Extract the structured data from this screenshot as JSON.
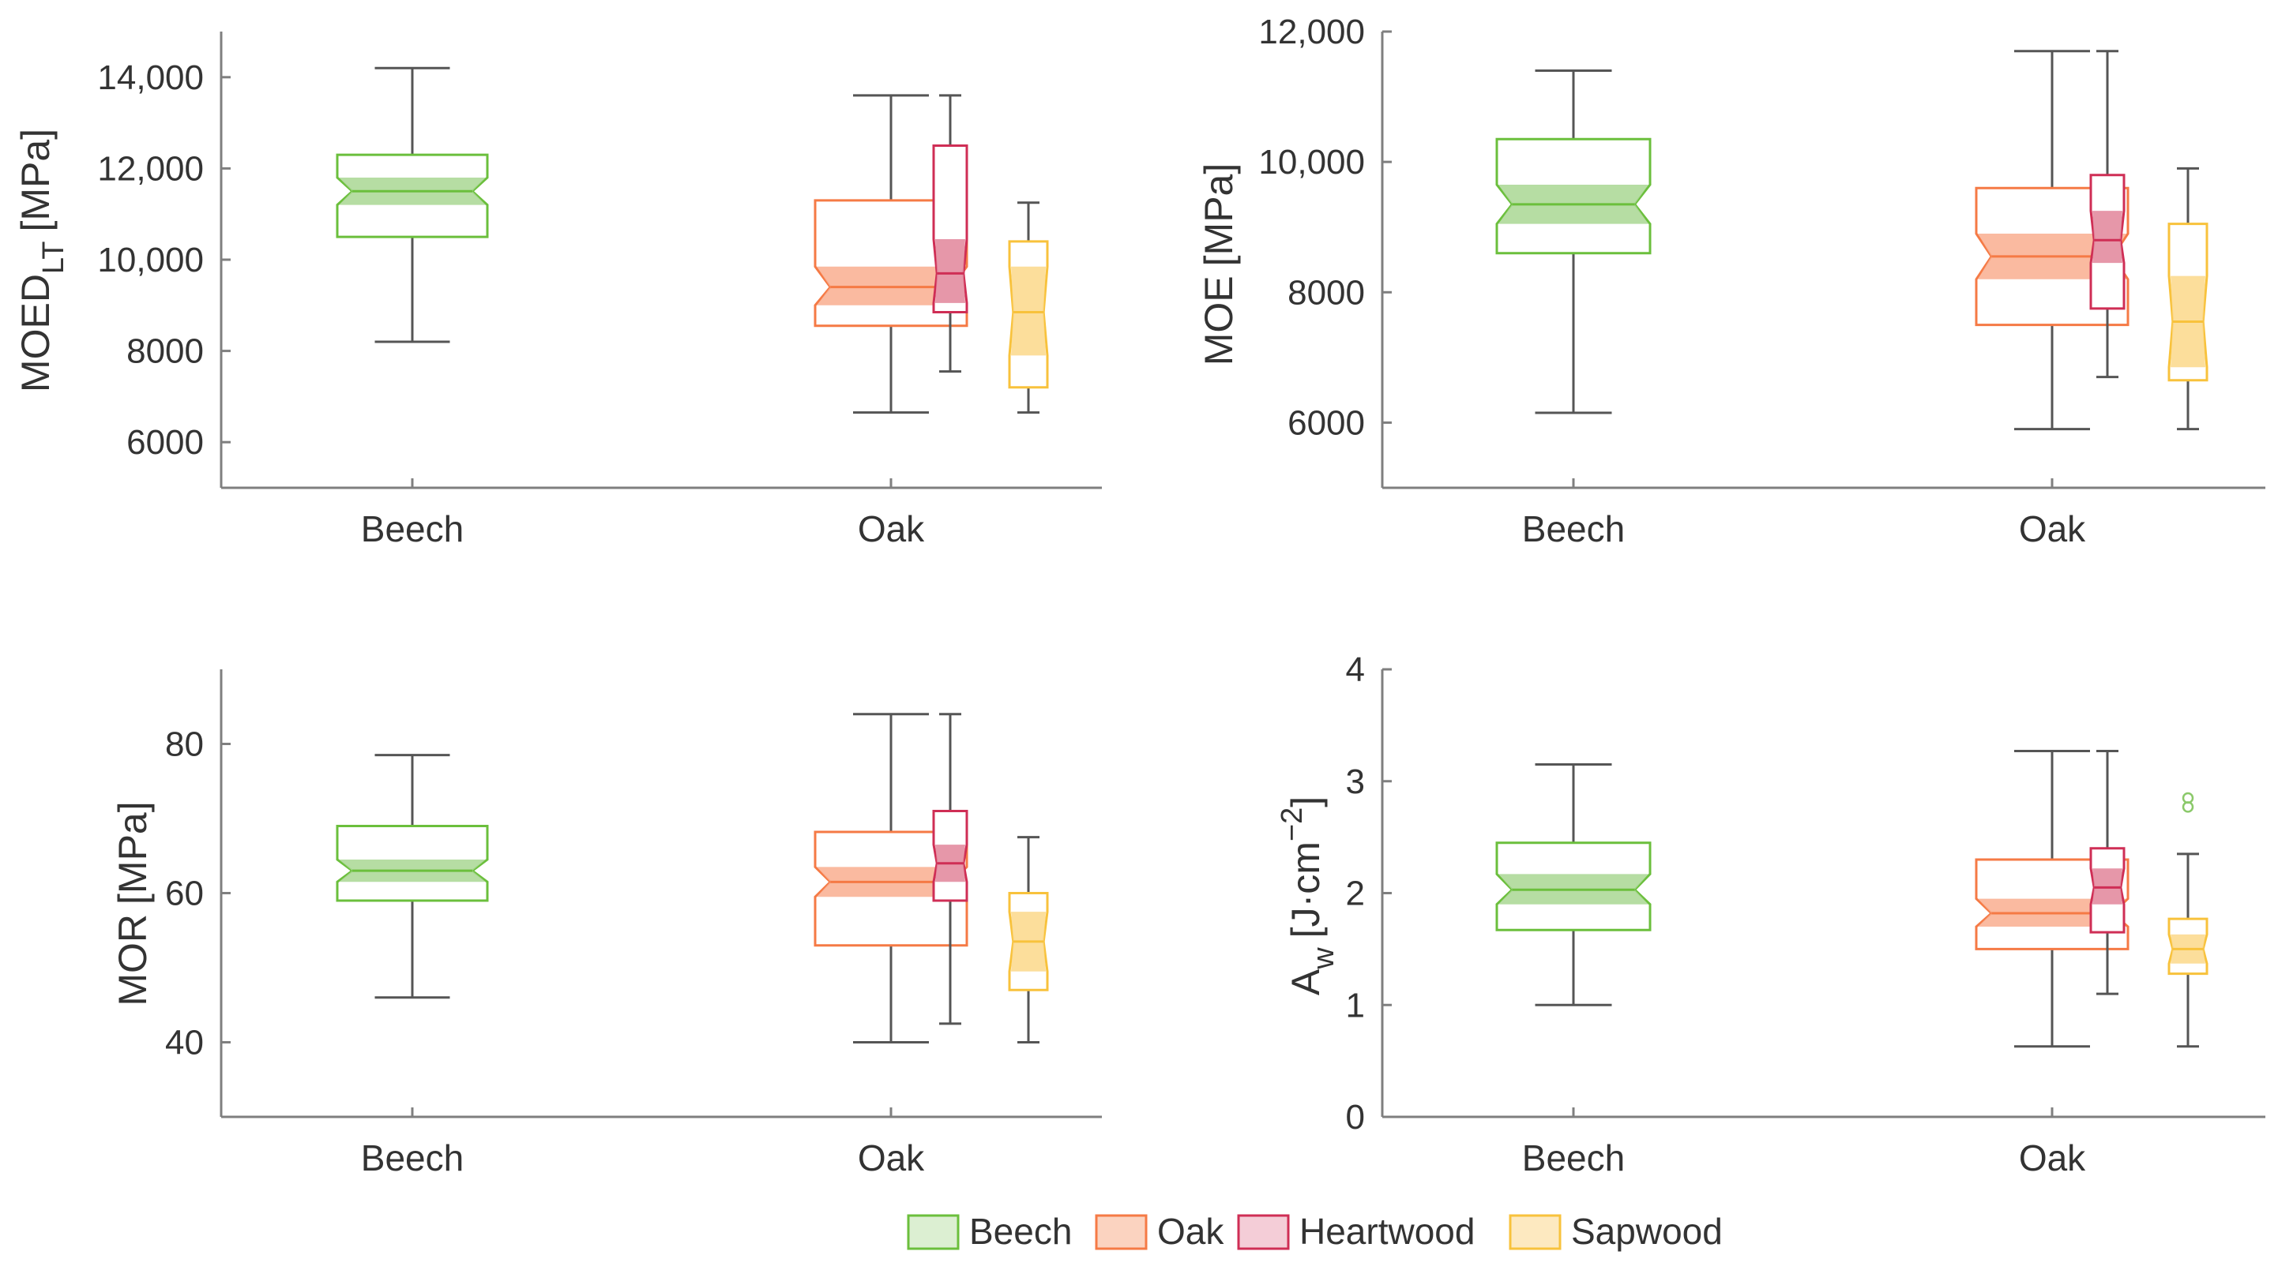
{
  "chart_data": [
    {
      "type": "box",
      "id": "moed",
      "ylabel": "MOED",
      "ylabel_sub": "LT",
      "ylabel_unit": "[MPa]",
      "ylim": [
        5000,
        15000
      ],
      "yticks": [
        6000,
        8000,
        10000,
        12000,
        14000
      ],
      "ytick_labels": [
        "6000",
        "8000",
        "10,000",
        "12,000",
        "14,000"
      ],
      "categories": [
        "Beech",
        "Oak"
      ],
      "boxes": [
        {
          "group": "Beech",
          "position": "Beech",
          "wlo": 8200,
          "q1": 10500,
          "med": 11500,
          "q3": 12300,
          "whi": 14200,
          "nlo": 11200,
          "nhi": 11800,
          "outliers": []
        },
        {
          "group": "Oak",
          "position": "Oak",
          "wlo": 6650,
          "q1": 8550,
          "med": 9400,
          "q3": 11300,
          "whi": 13600,
          "nlo": 9000,
          "nhi": 9850,
          "outliers": []
        },
        {
          "group": "Heartwood",
          "position": "Oak-heart",
          "wlo": 7550,
          "q1": 8850,
          "med": 9700,
          "q3": 12500,
          "whi": 13600,
          "nlo": 9050,
          "nhi": 10450,
          "outliers": []
        },
        {
          "group": "Sapwood",
          "position": "Oak-sap",
          "wlo": 6650,
          "q1": 7200,
          "med": 8850,
          "q3": 10400,
          "whi": 11250,
          "nlo": 7900,
          "nhi": 9850,
          "outliers": []
        }
      ]
    },
    {
      "type": "box",
      "id": "moe",
      "ylabel": "MOE",
      "ylabel_sub": "",
      "ylabel_unit": "[MPa]",
      "ylim": [
        5000,
        12000
      ],
      "yticks": [
        6000,
        8000,
        10000,
        12000
      ],
      "ytick_labels": [
        "6000",
        "8000",
        "10,000",
        "12,000"
      ],
      "categories": [
        "Beech",
        "Oak"
      ],
      "boxes": [
        {
          "group": "Beech",
          "position": "Beech",
          "wlo": 6150,
          "q1": 8600,
          "med": 9350,
          "q3": 10350,
          "whi": 11400,
          "nlo": 9050,
          "nhi": 9650,
          "outliers": []
        },
        {
          "group": "Oak",
          "position": "Oak",
          "wlo": 5900,
          "q1": 7500,
          "med": 8550,
          "q3": 9600,
          "whi": 11700,
          "nlo": 8200,
          "nhi": 8900,
          "outliers": []
        },
        {
          "group": "Heartwood",
          "position": "Oak-heart",
          "wlo": 6700,
          "q1": 7750,
          "med": 8800,
          "q3": 9800,
          "whi": 11700,
          "nlo": 8450,
          "nhi": 9250,
          "outliers": []
        },
        {
          "group": "Sapwood",
          "position": "Oak-sap",
          "wlo": 5900,
          "q1": 6650,
          "med": 7550,
          "q3": 9050,
          "whi": 9900,
          "nlo": 6850,
          "nhi": 8250,
          "outliers": []
        }
      ]
    },
    {
      "type": "box",
      "id": "mor",
      "ylabel": "MOR",
      "ylabel_sub": "",
      "ylabel_unit": "[MPa]",
      "ylim": [
        30,
        90
      ],
      "yticks": [
        40,
        60,
        80
      ],
      "ytick_labels": [
        "40",
        "60",
        "80"
      ],
      "categories": [
        "Beech",
        "Oak"
      ],
      "boxes": [
        {
          "group": "Beech",
          "position": "Beech",
          "wlo": 46,
          "q1": 59,
          "med": 63,
          "q3": 69,
          "whi": 78.5,
          "nlo": 61.5,
          "nhi": 64.5,
          "outliers": []
        },
        {
          "group": "Oak",
          "position": "Oak",
          "wlo": 40,
          "q1": 53,
          "med": 61.5,
          "q3": 68.2,
          "whi": 84,
          "nlo": 59.5,
          "nhi": 63.5,
          "outliers": []
        },
        {
          "group": "Heartwood",
          "position": "Oak-heart",
          "wlo": 42.5,
          "q1": 59,
          "med": 64,
          "q3": 71,
          "whi": 84,
          "nlo": 61.5,
          "nhi": 66.5,
          "outliers": []
        },
        {
          "group": "Sapwood",
          "position": "Oak-sap",
          "wlo": 40,
          "q1": 47,
          "med": 53.5,
          "q3": 60,
          "whi": 67.5,
          "nlo": 49.5,
          "nhi": 57.5,
          "outliers": []
        }
      ]
    },
    {
      "type": "box",
      "id": "aw",
      "ylabel": "A",
      "ylabel_sub": "w",
      "ylabel_unit": "[J·cm",
      "ylabel_sup": "−2",
      "ylabel_end": "]",
      "ylim": [
        0,
        4
      ],
      "yticks": [
        0,
        1,
        2,
        3,
        4
      ],
      "ytick_labels": [
        "0",
        "1",
        "2",
        "3",
        "4"
      ],
      "categories": [
        "Beech",
        "Oak"
      ],
      "boxes": [
        {
          "group": "Beech",
          "position": "Beech",
          "wlo": 1.0,
          "q1": 1.67,
          "med": 2.03,
          "q3": 2.45,
          "whi": 3.15,
          "nlo": 1.9,
          "nhi": 2.17,
          "outliers": []
        },
        {
          "group": "Oak",
          "position": "Oak",
          "wlo": 0.63,
          "q1": 1.5,
          "med": 1.82,
          "q3": 2.3,
          "whi": 3.27,
          "nlo": 1.7,
          "nhi": 1.95,
          "outliers": []
        },
        {
          "group": "Heartwood",
          "position": "Oak-heart",
          "wlo": 1.1,
          "q1": 1.65,
          "med": 2.05,
          "q3": 2.4,
          "whi": 3.27,
          "nlo": 1.9,
          "nhi": 2.22,
          "outliers": []
        },
        {
          "group": "Sapwood",
          "position": "Oak-sap",
          "wlo": 0.63,
          "q1": 1.28,
          "med": 1.5,
          "q3": 1.77,
          "whi": 2.35,
          "nlo": 1.37,
          "nhi": 1.63,
          "outliers": [
            2.77,
            2.85
          ]
        }
      ]
    }
  ],
  "legend": [
    {
      "label": "Beech",
      "stroke": "#6bbf3c",
      "fill": "#dcefd2"
    },
    {
      "label": "Oak",
      "stroke": "#f57a45",
      "fill": "#fbd3c0"
    },
    {
      "label": "Heartwood",
      "stroke": "#cf2e55",
      "fill": "#f4cdd7"
    },
    {
      "label": "Sapwood",
      "stroke": "#f8c23c",
      "fill": "#fde9c0"
    }
  ],
  "colors": {
    "Beech": {
      "stroke": "#6bbf3c",
      "notch": "#a9d793"
    },
    "Oak": {
      "stroke": "#f57a45",
      "notch": "#f9ae8f"
    },
    "Heartwood": {
      "stroke": "#cf2e55",
      "notch": "#e2859a"
    },
    "Sapwood": {
      "stroke": "#f8c23c",
      "notch": "#fbd88a"
    },
    "axis": "#7f7f7f",
    "whisker": "#555555",
    "text": "#333333"
  }
}
